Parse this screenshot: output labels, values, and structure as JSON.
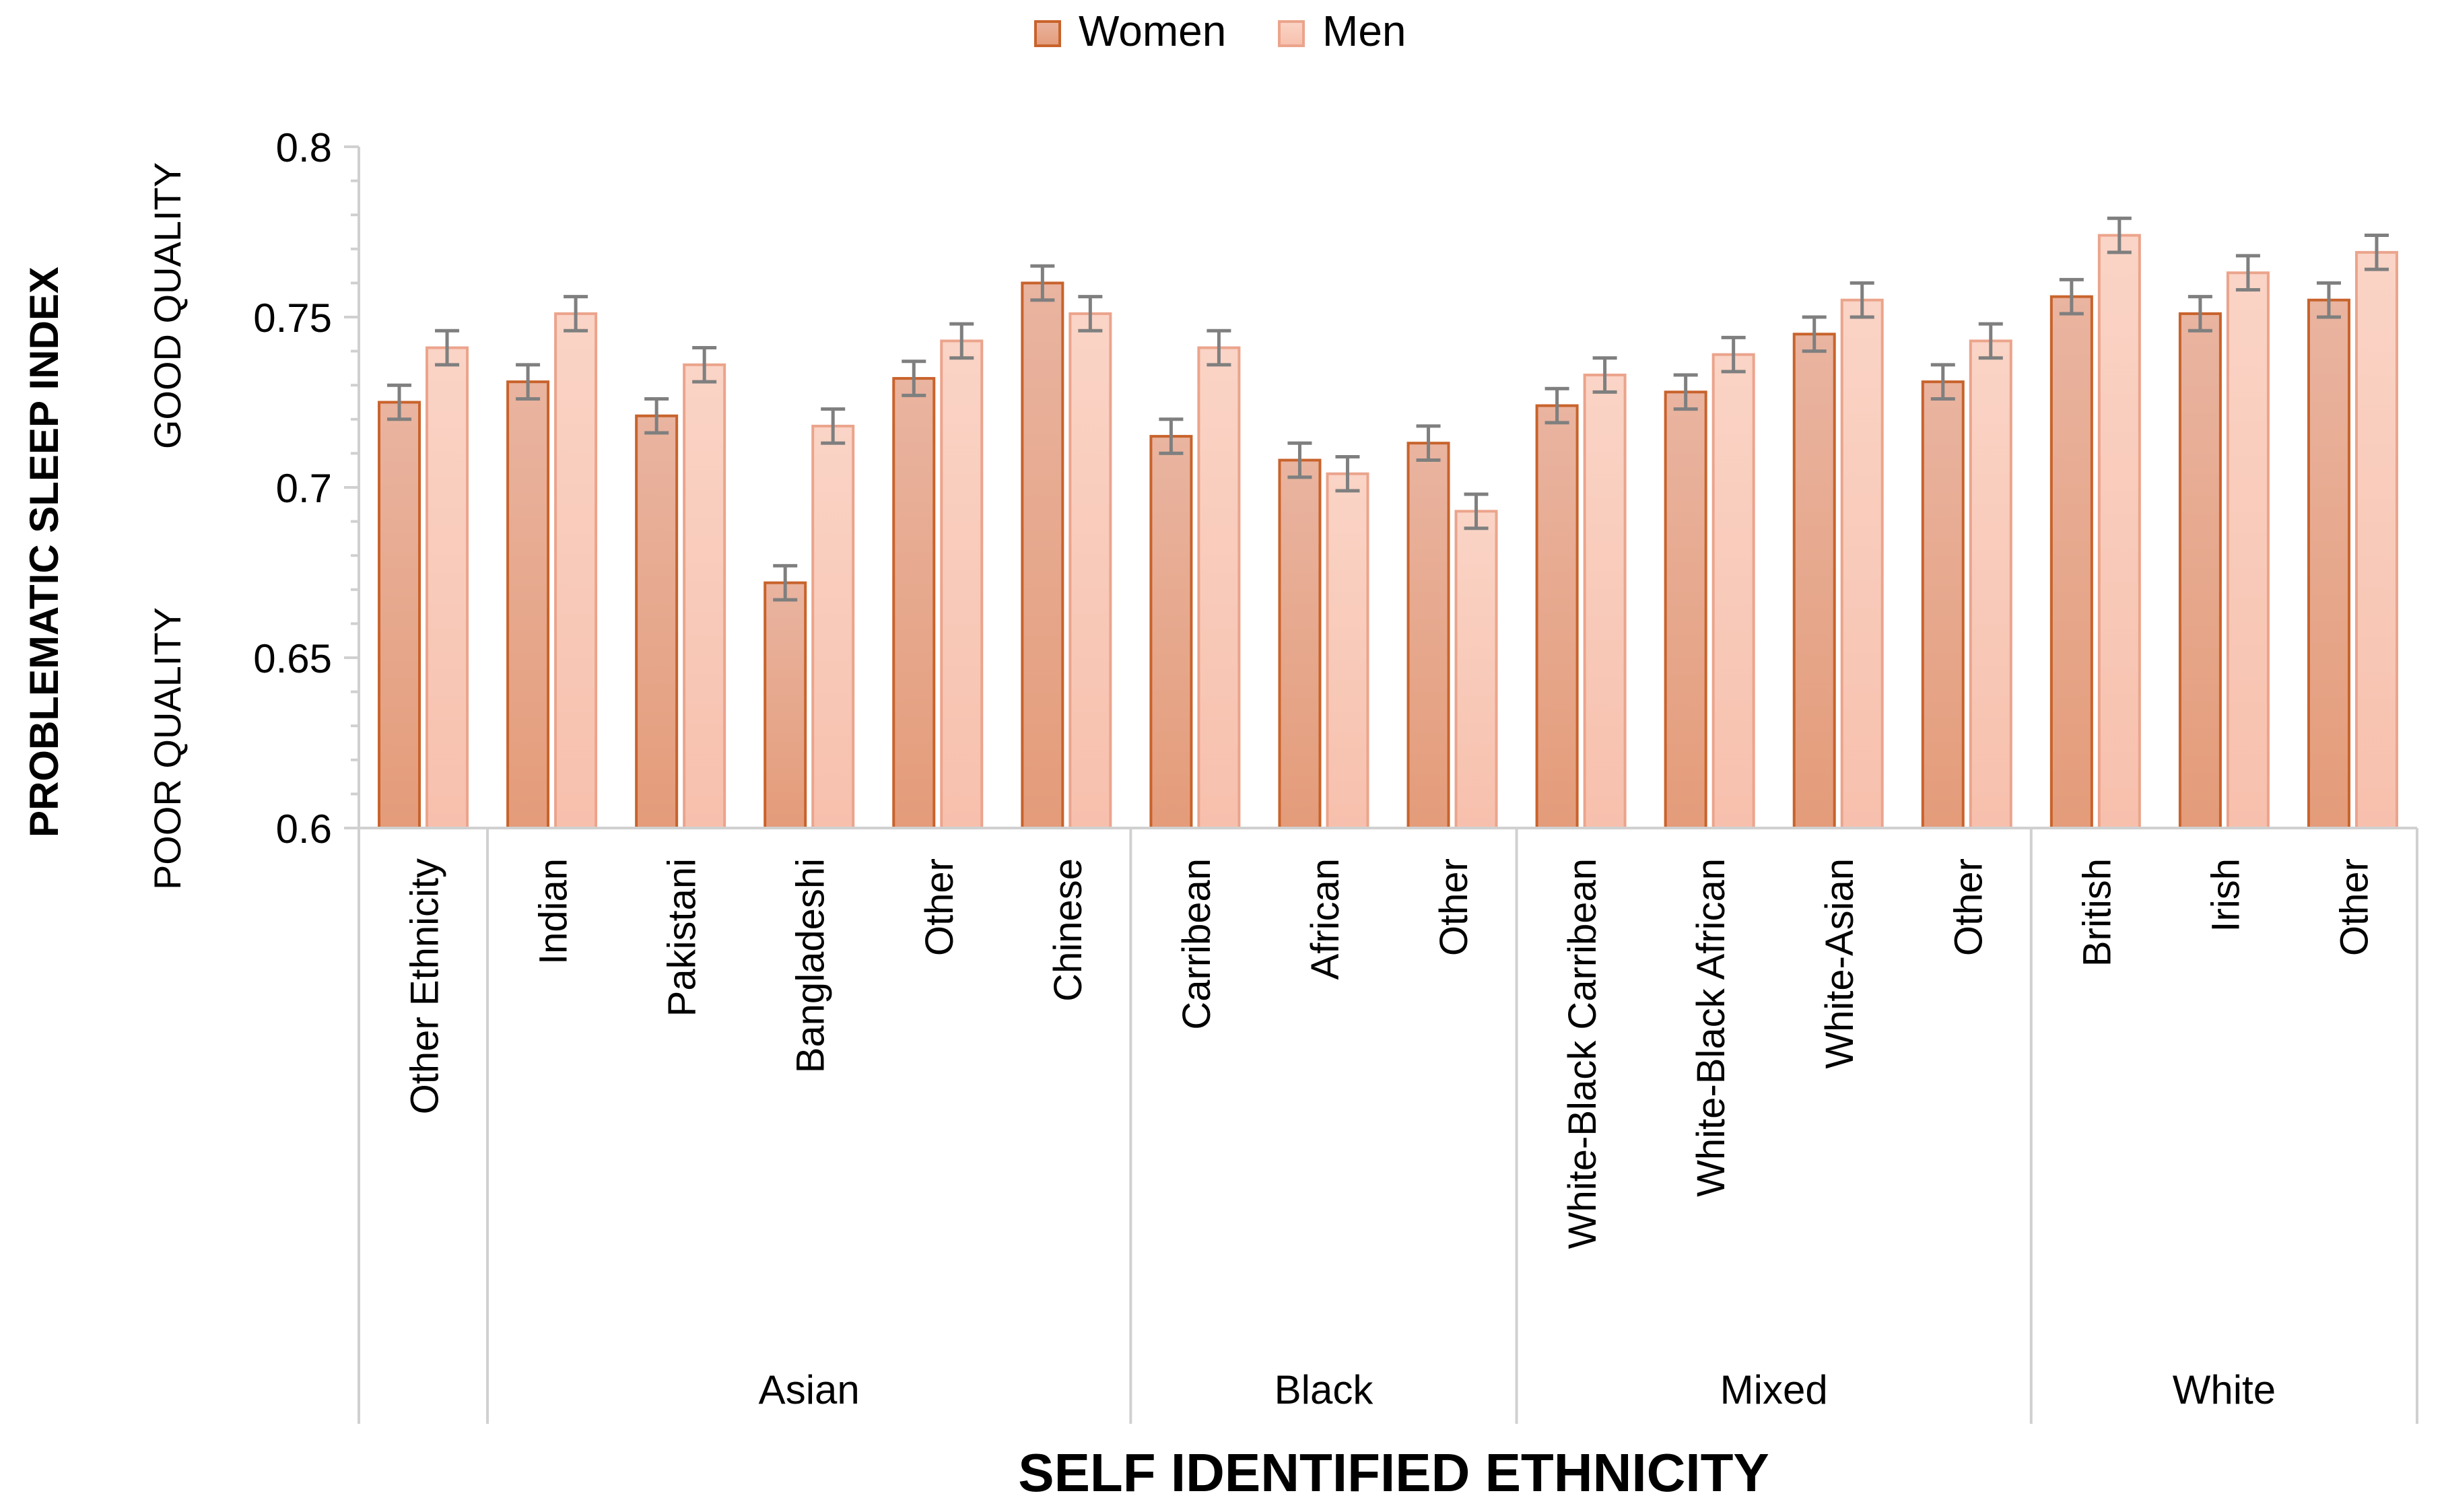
{
  "chart_data": {
    "type": "bar",
    "title": "",
    "xlabel": "SELF IDENTIFIED ETHNICITY",
    "ylabel": "PROBLEMATIC SLEEP INDEX",
    "y_annotations": {
      "upper": "GOOD QUALITY",
      "lower": "POOR QUALITY"
    },
    "ylim": [
      0.6,
      0.8
    ],
    "yticks": [
      "0.6",
      "0.65",
      "0.7",
      "0.75",
      "0.8"
    ],
    "legend": {
      "position": "top-center",
      "entries": [
        "Women",
        "Men"
      ]
    },
    "colors": {
      "women_fill": "#e6a98c",
      "women_stroke": "#c8632c",
      "men_fill": "#f8cabb",
      "men_stroke": "#eba48c",
      "error_bar": "#7f7f7f",
      "axis": "#d0d0d0"
    },
    "groups": [
      {
        "label": "",
        "categories": [
          "Other Ethnicity"
        ]
      },
      {
        "label": "Asian",
        "categories": [
          "Indian",
          "Pakistani",
          "Bangladeshi",
          "Other",
          "Chinese"
        ]
      },
      {
        "label": "Black",
        "categories": [
          "Carribean",
          "African",
          "Other"
        ]
      },
      {
        "label": "Mixed",
        "categories": [
          "White-Black Carribean",
          "White-Black African",
          "White-Asian",
          "Other"
        ]
      },
      {
        "label": "White",
        "categories": [
          "British",
          "Irish",
          "Other"
        ]
      }
    ],
    "series": [
      {
        "name": "Women",
        "values": [
          0.725,
          0.731,
          0.721,
          0.672,
          0.732,
          0.76,
          0.715,
          0.708,
          0.713,
          0.724,
          0.728,
          0.745,
          0.731,
          0.756,
          0.751,
          0.755
        ],
        "error": 0.005
      },
      {
        "name": "Men",
        "values": [
          0.741,
          0.751,
          0.736,
          0.718,
          0.743,
          0.751,
          0.741,
          0.704,
          0.693,
          0.733,
          0.739,
          0.755,
          0.743,
          0.774,
          0.763,
          0.769
        ],
        "error": 0.005
      }
    ]
  }
}
